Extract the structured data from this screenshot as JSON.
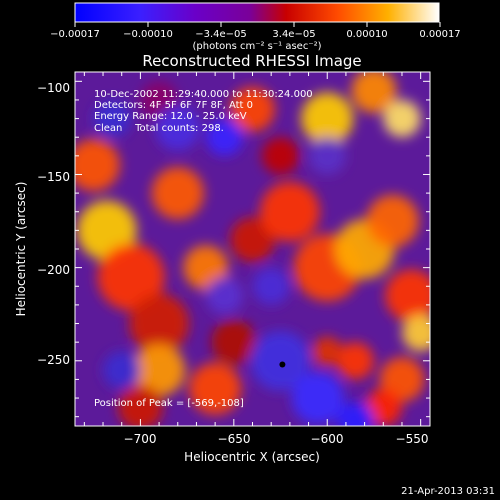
{
  "chart_data": {
    "type": "heatmap",
    "title": "Reconstructed RHESSI Image",
    "xlabel": "Heliocentric X (arcsec)",
    "ylabel": "Heliocentric Y (arcsec)",
    "xlim": [
      -735,
      -545
    ],
    "ylim": [
      -285,
      -95
    ],
    "xticks": [
      -700,
      -650,
      -600,
      -550
    ],
    "yticks": [
      -100,
      -150,
      -200,
      -250
    ],
    "xtick_labels": [
      "−700",
      "−650",
      "−600",
      "−550"
    ],
    "ytick_labels": [
      "−100",
      "−150",
      "−200",
      "−250"
    ],
    "colorbar": {
      "min": -0.00017,
      "max": 0.00017,
      "tick_labels": [
        "−0.00017",
        "−0.00010",
        "−3.4e−05",
        "3.4e−05",
        "0.00010",
        "0.00017"
      ],
      "unit_label": "(photons cm⁻² s⁻¹ asec⁻²)",
      "colors": [
        "#0000ff",
        "#6a00c8",
        "#7a0099",
        "#c80000",
        "#ff6600",
        "#ffdd00",
        "#ffffff"
      ]
    },
    "annotations": [
      "10-Dec-2002 11:29:40.000 to 11:30:24.000",
      "Detectors: 4F 5F 6F 7F 8F, Att 0",
      "Energy Range: 12.0 - 25.0 keV",
      "Clean    Total counts: 298."
    ],
    "peak_label": "Position of Peak = [-569,-108]",
    "peak": [
      -569,
      -108
    ],
    "grid": false
  },
  "footer": {
    "date": "21-Apr-2013 03:31"
  }
}
